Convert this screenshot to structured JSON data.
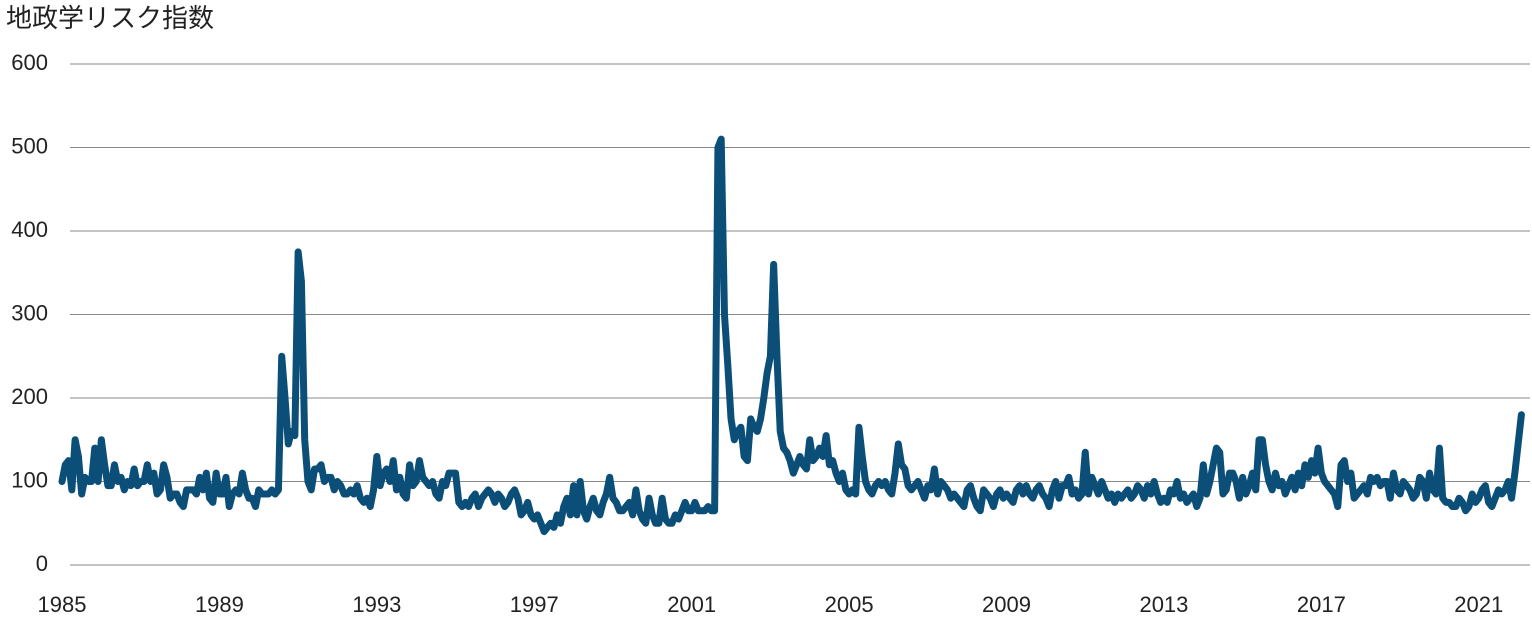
{
  "chart_data": {
    "type": "line",
    "title": "地政学リスク指数",
    "color": "#0b4f79",
    "xlim": [
      1985,
      2022.2
    ],
    "xticks": [
      1985,
      1989,
      1993,
      1997,
      2001,
      2005,
      2009,
      2013,
      2017,
      2021
    ],
    "ylim": [
      0,
      600
    ],
    "yticks": [
      0,
      100,
      200,
      300,
      400,
      500,
      600
    ],
    "grid": true,
    "x": [
      1985,
      1985.083,
      1985.167,
      1985.25,
      1985.333,
      1985.417,
      1985.5,
      1985.583,
      1985.667,
      1985.75,
      1985.833,
      1985.917,
      1986,
      1986.083,
      1986.167,
      1986.25,
      1986.333,
      1986.417,
      1986.5,
      1986.583,
      1986.667,
      1986.75,
      1986.833,
      1986.917,
      1987,
      1987.083,
      1987.167,
      1987.25,
      1987.333,
      1987.417,
      1987.5,
      1987.583,
      1987.667,
      1987.75,
      1987.833,
      1987.917,
      1988,
      1988.083,
      1988.167,
      1988.25,
      1988.333,
      1988.417,
      1988.5,
      1988.583,
      1988.667,
      1988.75,
      1988.833,
      1988.917,
      1989,
      1989.083,
      1989.167,
      1989.25,
      1989.333,
      1989.417,
      1989.5,
      1989.583,
      1989.667,
      1989.75,
      1989.833,
      1989.917,
      1990,
      1990.083,
      1990.167,
      1990.25,
      1990.333,
      1990.417,
      1990.5,
      1990.583,
      1990.667,
      1990.75,
      1990.833,
      1990.917,
      1991,
      1991.083,
      1991.167,
      1991.25,
      1991.333,
      1991.417,
      1991.5,
      1991.583,
      1991.667,
      1991.75,
      1991.833,
      1991.917,
      1992,
      1992.083,
      1992.167,
      1992.25,
      1992.333,
      1992.417,
      1992.5,
      1992.583,
      1992.667,
      1992.75,
      1992.833,
      1992.917,
      1993,
      1993.083,
      1993.167,
      1993.25,
      1993.333,
      1993.417,
      1993.5,
      1993.583,
      1993.667,
      1993.75,
      1993.833,
      1993.917,
      1994,
      1994.083,
      1994.167,
      1994.25,
      1994.333,
      1994.417,
      1994.5,
      1994.583,
      1994.667,
      1994.75,
      1994.833,
      1994.917,
      1995,
      1995.083,
      1995.167,
      1995.25,
      1995.333,
      1995.417,
      1995.5,
      1995.583,
      1995.667,
      1995.75,
      1995.833,
      1995.917,
      1996,
      1996.083,
      1996.167,
      1996.25,
      1996.333,
      1996.417,
      1996.5,
      1996.583,
      1996.667,
      1996.75,
      1996.833,
      1996.917,
      1997,
      1997.083,
      1997.167,
      1997.25,
      1997.333,
      1997.417,
      1997.5,
      1997.583,
      1997.667,
      1997.75,
      1997.833,
      1997.917,
      1998,
      1998.083,
      1998.167,
      1998.25,
      1998.333,
      1998.417,
      1998.5,
      1998.583,
      1998.667,
      1998.75,
      1998.833,
      1998.917,
      1999,
      1999.083,
      1999.167,
      1999.25,
      1999.333,
      1999.417,
      1999.5,
      1999.583,
      1999.667,
      1999.75,
      1999.833,
      1999.917,
      2000,
      2000.083,
      2000.167,
      2000.25,
      2000.333,
      2000.417,
      2000.5,
      2000.583,
      2000.667,
      2000.75,
      2000.833,
      2000.917,
      2001,
      2001.083,
      2001.167,
      2001.25,
      2001.333,
      2001.417,
      2001.5,
      2001.583,
      2001.667,
      2001.75,
      2001.833,
      2001.917,
      2002,
      2002.083,
      2002.167,
      2002.25,
      2002.333,
      2002.417,
      2002.5,
      2002.583,
      2002.667,
      2002.75,
      2002.833,
      2002.917,
      2003,
      2003.083,
      2003.167,
      2003.25,
      2003.333,
      2003.417,
      2003.5,
      2003.583,
      2003.667,
      2003.75,
      2003.833,
      2003.917,
      2004,
      2004.083,
      2004.167,
      2004.25,
      2004.333,
      2004.417,
      2004.5,
      2004.583,
      2004.667,
      2004.75,
      2004.833,
      2004.917,
      2005,
      2005.083,
      2005.167,
      2005.25,
      2005.333,
      2005.417,
      2005.5,
      2005.583,
      2005.667,
      2005.75,
      2005.833,
      2005.917,
      2006,
      2006.083,
      2006.167,
      2006.25,
      2006.333,
      2006.417,
      2006.5,
      2006.583,
      2006.667,
      2006.75,
      2006.833,
      2006.917,
      2007,
      2007.083,
      2007.167,
      2007.25,
      2007.333,
      2007.417,
      2007.5,
      2007.583,
      2007.667,
      2007.75,
      2007.833,
      2007.917,
      2008,
      2008.083,
      2008.167,
      2008.25,
      2008.333,
      2008.417,
      2008.5,
      2008.583,
      2008.667,
      2008.75,
      2008.833,
      2008.917,
      2009,
      2009.083,
      2009.167,
      2009.25,
      2009.333,
      2009.417,
      2009.5,
      2009.583,
      2009.667,
      2009.75,
      2009.833,
      2009.917,
      2010,
      2010.083,
      2010.167,
      2010.25,
      2010.333,
      2010.417,
      2010.5,
      2010.583,
      2010.667,
      2010.75,
      2010.833,
      2010.917,
      2011,
      2011.083,
      2011.167,
      2011.25,
      2011.333,
      2011.417,
      2011.5,
      2011.583,
      2011.667,
      2011.75,
      2011.833,
      2011.917,
      2012,
      2012.083,
      2012.167,
      2012.25,
      2012.333,
      2012.417,
      2012.5,
      2012.583,
      2012.667,
      2012.75,
      2012.833,
      2012.917,
      2013,
      2013.083,
      2013.167,
      2013.25,
      2013.333,
      2013.417,
      2013.5,
      2013.583,
      2013.667,
      2013.75,
      2013.833,
      2013.917,
      2014,
      2014.083,
      2014.167,
      2014.25,
      2014.333,
      2014.417,
      2014.5,
      2014.583,
      2014.667,
      2014.75,
      2014.833,
      2014.917,
      2015,
      2015.083,
      2015.167,
      2015.25,
      2015.333,
      2015.417,
      2015.5,
      2015.583,
      2015.667,
      2015.75,
      2015.833,
      2015.917,
      2016,
      2016.083,
      2016.167,
      2016.25,
      2016.333,
      2016.417,
      2016.5,
      2016.583,
      2016.667,
      2016.75,
      2016.833,
      2016.917,
      2017,
      2017.083,
      2017.167,
      2017.25,
      2017.333,
      2017.417,
      2017.5,
      2017.583,
      2017.667,
      2017.75,
      2017.833,
      2017.917,
      2018,
      2018.083,
      2018.167,
      2018.25,
      2018.333,
      2018.417,
      2018.5,
      2018.583,
      2018.667,
      2018.75,
      2018.833,
      2018.917,
      2019,
      2019.083,
      2019.167,
      2019.25,
      2019.333,
      2019.417,
      2019.5,
      2019.583,
      2019.667,
      2019.75,
      2019.833,
      2019.917,
      2020,
      2020.083,
      2020.167,
      2020.25,
      2020.333,
      2020.417,
      2020.5,
      2020.583,
      2020.667,
      2020.75,
      2020.833,
      2020.917,
      2021,
      2021.083,
      2021.167,
      2021.25,
      2021.333,
      2021.417,
      2021.5,
      2021.583,
      2021.667,
      2021.75,
      2021.833,
      2021.917,
      2022,
      2022.083
    ],
    "values": [
      100,
      120,
      125,
      90,
      150,
      130,
      85,
      105,
      100,
      100,
      140,
      100,
      150,
      120,
      95,
      95,
      120,
      100,
      105,
      90,
      100,
      95,
      115,
      95,
      100,
      100,
      120,
      100,
      110,
      85,
      90,
      120,
      105,
      80,
      85,
      85,
      75,
      70,
      90,
      90,
      90,
      85,
      105,
      90,
      110,
      80,
      75,
      110,
      85,
      85,
      105,
      70,
      85,
      90,
      85,
      110,
      90,
      80,
      80,
      70,
      90,
      85,
      85,
      85,
      90,
      85,
      90,
      250,
      200,
      145,
      160,
      155,
      375,
      340,
      150,
      100,
      90,
      115,
      115,
      120,
      100,
      105,
      105,
      90,
      100,
      95,
      85,
      85,
      90,
      85,
      95,
      80,
      75,
      80,
      70,
      90,
      130,
      95,
      110,
      115,
      100,
      125,
      90,
      105,
      85,
      80,
      120,
      95,
      100,
      125,
      105,
      100,
      95,
      100,
      85,
      80,
      100,
      95,
      110,
      110,
      110,
      75,
      70,
      75,
      70,
      80,
      85,
      70,
      80,
      85,
      90,
      85,
      75,
      85,
      80,
      70,
      75,
      85,
      90,
      80,
      60,
      65,
      75,
      60,
      55,
      60,
      50,
      40,
      45,
      50,
      45,
      60,
      50,
      70,
      80,
      60,
      95,
      60,
      100,
      65,
      55,
      70,
      80,
      65,
      60,
      75,
      85,
      105,
      80,
      75,
      65,
      65,
      70,
      75,
      60,
      90,
      65,
      55,
      50,
      80,
      60,
      50,
      50,
      80,
      55,
      50,
      50,
      60,
      55,
      65,
      75,
      65,
      65,
      75,
      65,
      65,
      65,
      70,
      65,
      65,
      500,
      510,
      300,
      240,
      175,
      150,
      160,
      165,
      130,
      125,
      175,
      165,
      160,
      175,
      200,
      230,
      250,
      360,
      250,
      160,
      140,
      135,
      125,
      110,
      120,
      130,
      120,
      115,
      150,
      125,
      130,
      140,
      130,
      155,
      120,
      125,
      110,
      100,
      110,
      90,
      85,
      90,
      85,
      165,
      130,
      100,
      90,
      85,
      95,
      100,
      95,
      100,
      90,
      85,
      110,
      145,
      120,
      115,
      95,
      90,
      95,
      100,
      90,
      80,
      95,
      90,
      115,
      85,
      100,
      95,
      90,
      80,
      85,
      80,
      75,
      70,
      90,
      95,
      80,
      70,
      65,
      90,
      85,
      80,
      70,
      85,
      90,
      80,
      85,
      80,
      75,
      90,
      95,
      85,
      95,
      85,
      80,
      90,
      95,
      85,
      80,
      70,
      90,
      100,
      80,
      95,
      95,
      105,
      85,
      90,
      80,
      85,
      135,
      85,
      105,
      95,
      85,
      100,
      90,
      80,
      85,
      75,
      85,
      80,
      85,
      90,
      80,
      85,
      95,
      90,
      80,
      95,
      85,
      100,
      85,
      75,
      80,
      75,
      90,
      85,
      100,
      80,
      85,
      75,
      80,
      85,
      70,
      80,
      120,
      85,
      100,
      120,
      140,
      135,
      85,
      90,
      110,
      110,
      100,
      80,
      105,
      85,
      95,
      110,
      90,
      150,
      150,
      120,
      100,
      90,
      110,
      95,
      100,
      85,
      95,
      105,
      90,
      110,
      95,
      120,
      105,
      125,
      110,
      140,
      110,
      100,
      95,
      90,
      85,
      70,
      120,
      125,
      100,
      110,
      80,
      85,
      90,
      95,
      85,
      105,
      100,
      105,
      95,
      100,
      100,
      80,
      110,
      90,
      85,
      100,
      95,
      90,
      80,
      85,
      105,
      100,
      80,
      110,
      90,
      85,
      140,
      80,
      75,
      75,
      70,
      70,
      80,
      75,
      65,
      70,
      85,
      75,
      80,
      90,
      95,
      75,
      70,
      80,
      90,
      85,
      90,
      100,
      80,
      110,
      145,
      180
    ]
  }
}
